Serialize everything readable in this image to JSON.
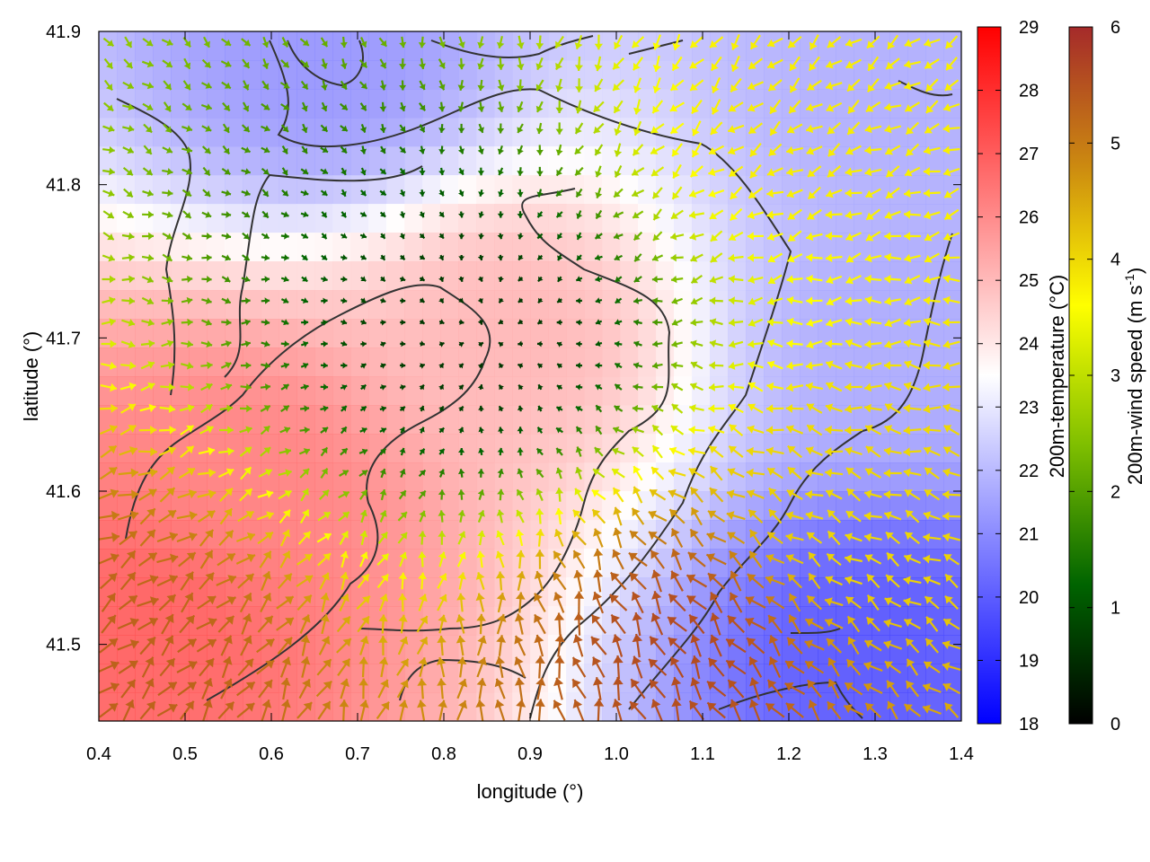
{
  "chart_data": {
    "type": "heatmap",
    "title": "",
    "xlabel": "longitude (°)",
    "ylabel": "latitude (°)",
    "xlim": [
      0.4,
      1.4
    ],
    "ylim": [
      41.45,
      41.9
    ],
    "x_ticks": [
      "0.4",
      "0.5",
      "0.6",
      "0.7",
      "0.8",
      "0.9",
      "1.0",
      "1.1",
      "1.2",
      "1.3",
      "1.4"
    ],
    "y_ticks": [
      "41.5",
      "41.6",
      "41.7",
      "41.8",
      "41.9"
    ],
    "grid": false,
    "temperature_colorbar": {
      "label": "200m-temperature (°C)",
      "range": [
        18,
        29
      ],
      "ticks": [
        "18",
        "19",
        "20",
        "21",
        "22",
        "23",
        "24",
        "25",
        "26",
        "27",
        "28",
        "29"
      ],
      "colors": [
        "#0000ff",
        "#ffffff",
        "#ff0000"
      ]
    },
    "wind_colorbar": {
      "label": "200m-wind speed (m s",
      "label_sup": "-1",
      "label_end": ")",
      "range": [
        0,
        6
      ],
      "ticks": [
        "0",
        "1",
        "2",
        "3",
        "4",
        "5",
        "6"
      ],
      "colors": [
        "#000000",
        "#006400",
        "#7fbf00",
        "#ffff00",
        "#cc8a10",
        "#a52a2a"
      ]
    },
    "temperature_regions": [
      {
        "name": "warm-center",
        "lon": 0.88,
        "lat": 41.7,
        "temp": 25.2
      },
      {
        "name": "warm-southwest",
        "lon": 0.47,
        "lat": 41.52,
        "temp": 27.3
      },
      {
        "name": "warm-west",
        "lon": 0.58,
        "lat": 41.6,
        "temp": 26.5
      },
      {
        "name": "cool-southeast",
        "lon": 1.3,
        "lat": 41.5,
        "temp": 19.5
      },
      {
        "name": "cool-east",
        "lon": 1.33,
        "lat": 41.7,
        "temp": 21.5
      },
      {
        "name": "cool-north",
        "lon": 0.66,
        "lat": 41.88,
        "temp": 21.0
      },
      {
        "name": "cool-northeast",
        "lon": 1.32,
        "lat": 41.86,
        "temp": 21.6
      }
    ],
    "wind_regimes": [
      {
        "name": "calm-center",
        "lon": 0.85,
        "lat": 41.7,
        "speed": 0.6
      },
      {
        "name": "strong-southeast",
        "lon": 1.08,
        "lat": 41.5,
        "speed": 5.6
      },
      {
        "name": "strong-southwest",
        "lon": 0.42,
        "lat": 41.48,
        "speed": 5.3
      },
      {
        "name": "moderate-east",
        "lon": 1.28,
        "lat": 41.58,
        "speed": 4.0
      },
      {
        "name": "moderate-northeast",
        "lon": 1.22,
        "lat": 41.84,
        "speed": 3.8
      }
    ]
  }
}
